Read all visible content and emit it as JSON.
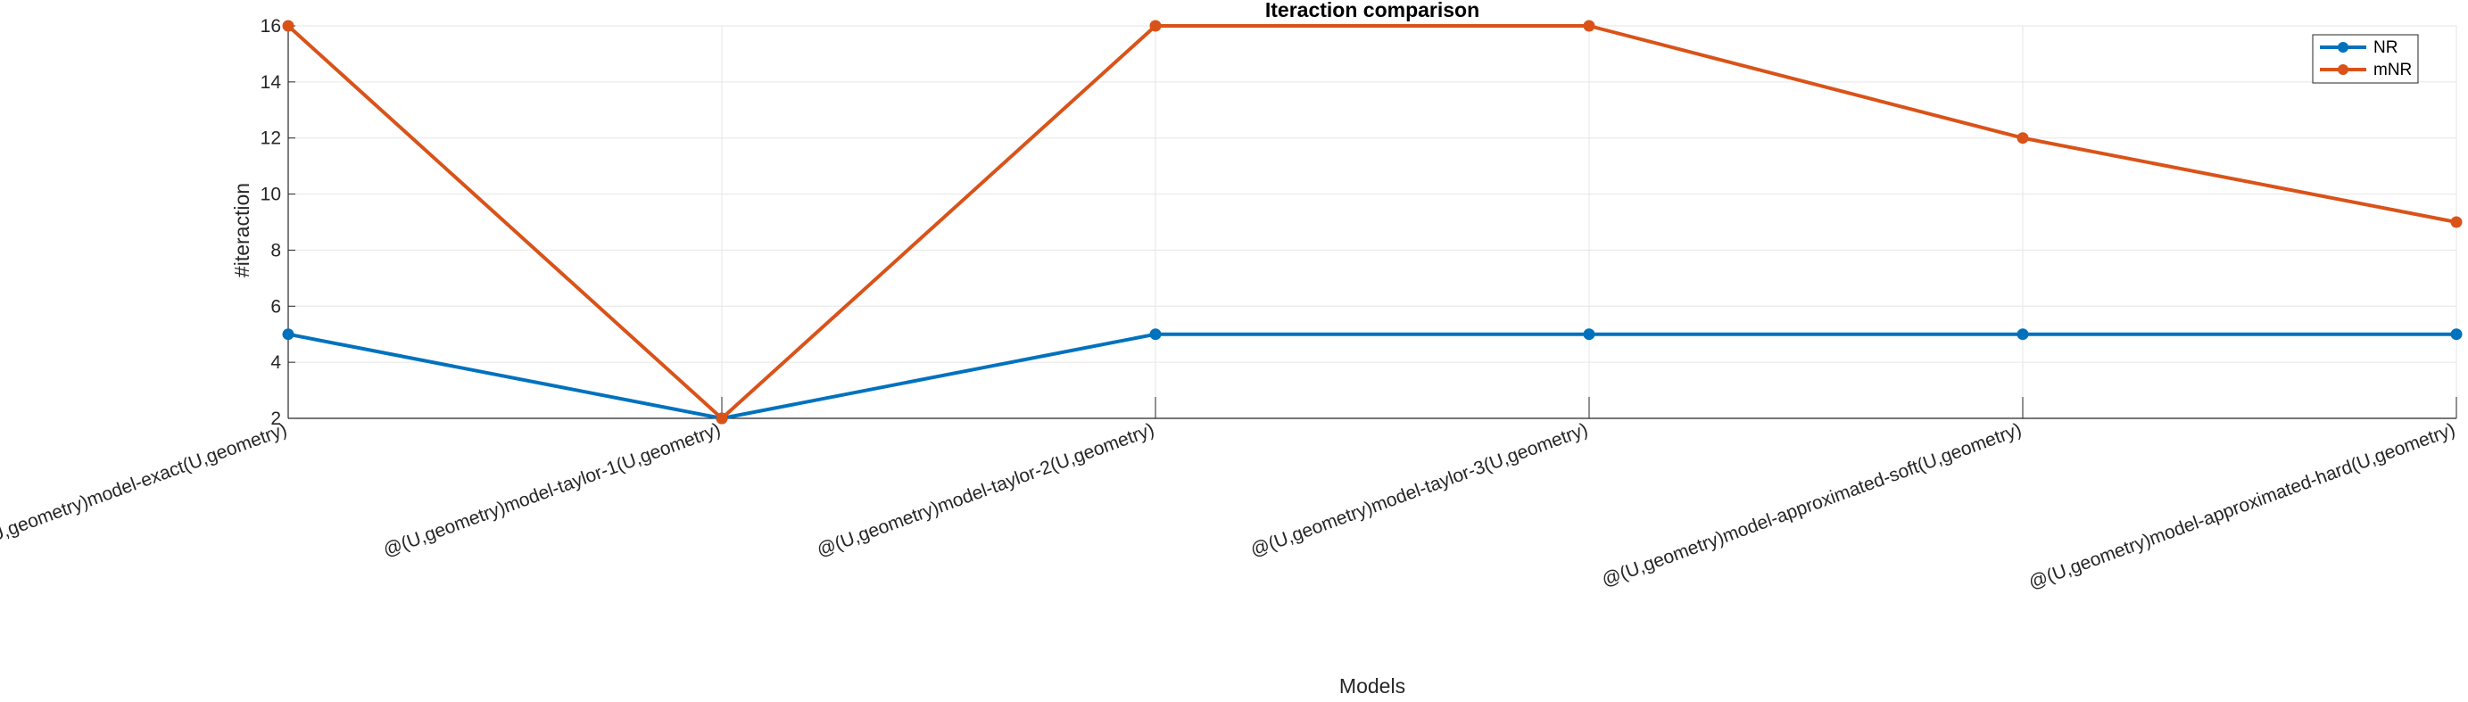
{
  "chart_data": {
    "type": "line",
    "title": "Iteraction comparison",
    "xlabel": "Models",
    "ylabel": "#iteraction",
    "categories": [
      "@(U,geometry)model-exact(U,geometry)",
      "@(U,geometry)model-taylor-1(U,geometry)",
      "@(U,geometry)model-taylor-2(U,geometry)",
      "@(U,geometry)model-taylor-3(U,geometry)",
      "@(U,geometry)model-approximated-soft(U,geometry)",
      "@(U,geometry)model-approximated-hard(U,geometry)"
    ],
    "series": [
      {
        "name": "NR",
        "color": "#0072BD",
        "values": [
          5,
          2,
          5,
          5,
          5,
          5
        ]
      },
      {
        "name": "mNR",
        "color": "#D95319",
        "values": [
          16,
          2,
          16,
          16,
          12,
          9
        ]
      }
    ],
    "ylim": [
      2,
      16
    ],
    "yticks": [
      2,
      4,
      6,
      8,
      10,
      12,
      14,
      16
    ],
    "grid": true,
    "legend_position": "top-right"
  }
}
